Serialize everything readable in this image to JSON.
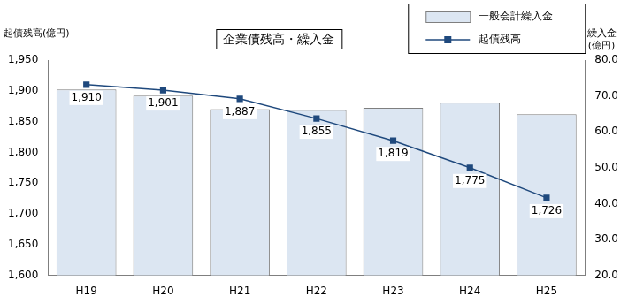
{
  "chart_data": {
    "type": "bar_line",
    "title": "企業債残高・繰入金",
    "ylabel": "起債残高(億円)",
    "y2label": "繰入金\n(億円)",
    "categories": [
      "H19",
      "H20",
      "H21",
      "H22",
      "H23",
      "H24",
      "H25"
    ],
    "series": [
      {
        "name": "一般会計繰入金",
        "type": "bar",
        "axis": "y2",
        "color": "#dce6f2",
        "values": [
          71.8,
          70.1,
          66.3,
          66.1,
          66.7,
          68.1,
          64.9
        ]
      },
      {
        "name": "起債残高",
        "type": "line",
        "axis": "y",
        "color": "#1f497d",
        "marker": "square",
        "values": [
          1910,
          1901,
          1887,
          1855,
          1819,
          1775,
          1726
        ],
        "value_labels": [
          "1,910",
          "1,901",
          "1,887",
          "1,855",
          "1,819",
          "1,775",
          "1,726"
        ]
      }
    ],
    "ylim": [
      1600,
      1950
    ],
    "yticks": [
      {
        "value": 1600,
        "label": "1,600"
      },
      {
        "value": 1650,
        "label": "1,650"
      },
      {
        "value": 1700,
        "label": "1,700"
      },
      {
        "value": 1750,
        "label": "1,750"
      },
      {
        "value": 1800,
        "label": "1,800"
      },
      {
        "value": 1850,
        "label": "1,850"
      },
      {
        "value": 1900,
        "label": "1,900"
      },
      {
        "value": 1950,
        "label": "1,950"
      }
    ],
    "y2lim": [
      20,
      80
    ],
    "y2ticks": [
      {
        "value": 20,
        "label": "20.0"
      },
      {
        "value": 30,
        "label": "30.0"
      },
      {
        "value": 40,
        "label": "40.0"
      },
      {
        "value": 50,
        "label": "50.0"
      },
      {
        "value": 60,
        "label": "60.0"
      },
      {
        "value": 70,
        "label": "70.0"
      },
      {
        "value": 80,
        "label": "80.0"
      }
    ],
    "grid": false,
    "legend": "top-right",
    "data_labels": true
  }
}
